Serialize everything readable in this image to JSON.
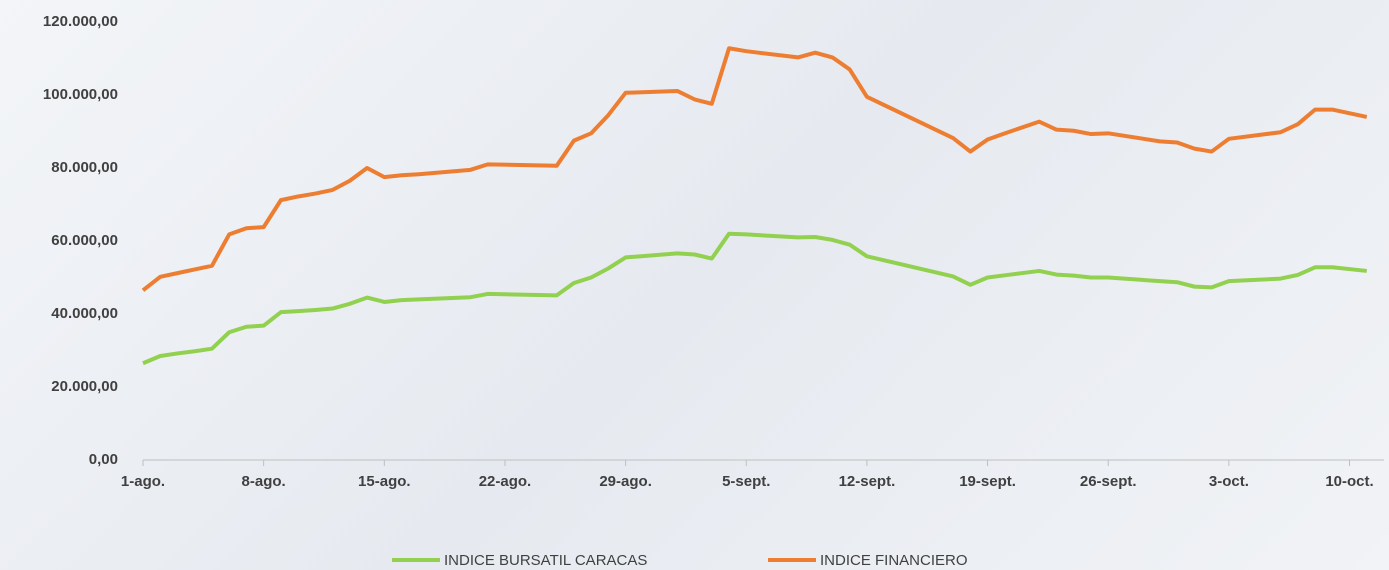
{
  "chart_data": {
    "type": "line",
    "x": [
      0,
      1,
      2,
      3,
      4,
      5,
      6,
      7,
      8,
      9,
      10,
      11,
      12,
      13,
      14,
      15,
      16,
      19,
      20,
      24,
      25,
      26,
      27,
      28,
      31,
      32,
      33,
      34,
      35,
      38,
      39,
      40,
      41,
      42,
      47,
      48,
      49,
      50,
      52,
      53,
      54,
      55,
      56,
      59,
      60,
      61,
      62,
      63,
      66,
      67,
      68,
      69,
      71
    ],
    "series": [
      {
        "name": "INDICE BURSATIL CARACAS",
        "color": "#92d050",
        "values": [
          26500,
          28500,
          29200,
          29800,
          30500,
          35000,
          36500,
          36800,
          40500,
          40800,
          41100,
          41500,
          42800,
          44500,
          43300,
          43800,
          44000,
          44600,
          45500,
          45100,
          48500,
          50000,
          52500,
          55500,
          56600,
          56300,
          55200,
          62000,
          61800,
          61000,
          61100,
          60300,
          59000,
          55800,
          50300,
          48000,
          50000,
          50600,
          51800,
          50800,
          50500,
          50000,
          50000,
          49000,
          48700,
          47500,
          47300,
          49000,
          49700,
          50700,
          52800,
          52800,
          51800
        ]
      },
      {
        "name": "INDICE FINANCIERO",
        "color": "#ed7d31",
        "values": [
          46500,
          50200,
          51200,
          52200,
          53200,
          61800,
          63500,
          63800,
          71200,
          72200,
          73000,
          74000,
          76500,
          80000,
          77500,
          78000,
          78300,
          79500,
          81000,
          80600,
          87500,
          89500,
          94500,
          100600,
          101100,
          98800,
          97600,
          112800,
          112000,
          110300,
          111600,
          110300,
          107000,
          99500,
          88200,
          84500,
          87800,
          89500,
          92700,
          90500,
          90200,
          89300,
          89500,
          87300,
          87000,
          85300,
          84500,
          88000,
          89800,
          92000,
          96000,
          96000,
          94000
        ]
      }
    ],
    "xlim": [
      0,
      72
    ],
    "xticks": [
      {
        "value": 0,
        "label": "1-ago."
      },
      {
        "value": 7,
        "label": "8-ago."
      },
      {
        "value": 14,
        "label": "15-ago."
      },
      {
        "value": 21,
        "label": "22-ago."
      },
      {
        "value": 28,
        "label": "29-ago."
      },
      {
        "value": 35,
        "label": "5-sept."
      },
      {
        "value": 42,
        "label": "12-sept."
      },
      {
        "value": 49,
        "label": "19-sept."
      },
      {
        "value": 56,
        "label": "26-sept."
      },
      {
        "value": 63,
        "label": "3-oct."
      },
      {
        "value": 70,
        "label": "10-oct."
      }
    ],
    "ylim": [
      0,
      120000
    ],
    "yticks": [
      {
        "value": 0,
        "label": "0,00"
      },
      {
        "value": 20000,
        "label": "20.000,00"
      },
      {
        "value": 40000,
        "label": "40.000,00"
      },
      {
        "value": 60000,
        "label": "60.000,00"
      },
      {
        "value": 80000,
        "label": "80.000,00"
      },
      {
        "value": 100000,
        "label": "100.000,00"
      },
      {
        "value": 120000,
        "label": "120.000,00"
      }
    ],
    "legend": "bottom"
  }
}
